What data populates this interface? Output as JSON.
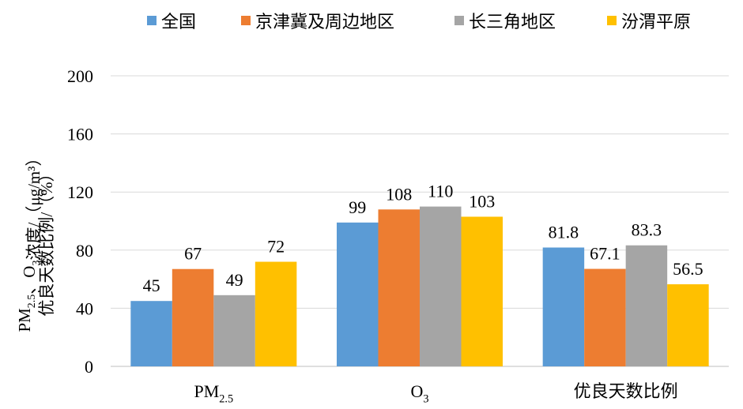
{
  "chart_data": {
    "type": "bar",
    "categories": [
      "PM2.5",
      "O3",
      "优良天数比例"
    ],
    "series": [
      {
        "name": "全国",
        "color": "#5B9BD5",
        "values": [
          45,
          99,
          81.8
        ],
        "labels": [
          "45",
          "99",
          "81.8"
        ]
      },
      {
        "name": "京津冀及周边地区",
        "color": "#ED7D31",
        "values": [
          67,
          108,
          67.1
        ],
        "labels": [
          "67",
          "108",
          "67.1"
        ]
      },
      {
        "name": "长三角地区",
        "color": "#A5A5A5",
        "values": [
          49,
          110,
          83.3
        ],
        "labels": [
          "49",
          "110",
          "83.3"
        ]
      },
      {
        "name": "汾渭平原",
        "color": "#FFC000",
        "values": [
          72,
          103,
          56.5
        ],
        "labels": [
          "72",
          "103",
          "56.5"
        ]
      }
    ],
    "ylim": [
      0,
      200
    ],
    "yticks": [
      0,
      40,
      80,
      120,
      160,
      200
    ],
    "ylabel_line1": "PM2.5、O3浓度/（μg/m³）",
    "ylabel_line2": "优良天数比例/（%）",
    "grid": true,
    "legend_position": "top"
  }
}
